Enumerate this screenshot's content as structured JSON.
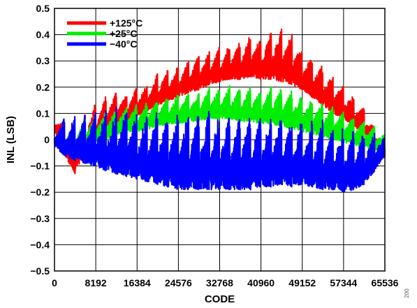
{
  "chart_data": {
    "type": "line",
    "title": "",
    "xlabel": "CODE",
    "ylabel": "INL (LSB)",
    "xlim": [
      0,
      65536
    ],
    "ylim": [
      -0.5,
      0.5
    ],
    "x_ticks": [
      0,
      8192,
      16384,
      24576,
      32768,
      40960,
      49152,
      57344,
      65536
    ],
    "x_tick_labels": [
      "0",
      "8192",
      "16384",
      "24576",
      "32768",
      "40960",
      "49152",
      "57344",
      "65536"
    ],
    "y_ticks": [
      -0.5,
      -0.4,
      -0.3,
      -0.2,
      -0.1,
      0,
      0.1,
      0.2,
      0.3,
      0.4,
      0.5
    ],
    "y_tick_labels": [
      "−0.5",
      "−0.4",
      "−0.3",
      "−0.2",
      "−0.1",
      "0",
      "0.1",
      "0.2",
      "0.3",
      "0.4",
      "0.5"
    ],
    "grid": true,
    "legend_position": "top-left",
    "figure_id": "200",
    "series": [
      {
        "name": "+125°C",
        "color": "#ff0000",
        "x": [
          0,
          2048,
          4096,
          6144,
          8192,
          10240,
          12288,
          14336,
          16384,
          18432,
          20480,
          22528,
          24576,
          26624,
          28672,
          30720,
          32768,
          34816,
          36864,
          38912,
          40960,
          43008,
          45056,
          47104,
          49152,
          51200,
          53248,
          55296,
          57344,
          59392,
          61440,
          63488,
          65536
        ],
        "high": [
          0.13,
          0.07,
          0.06,
          0.11,
          0.15,
          0.17,
          0.19,
          0.17,
          0.21,
          0.22,
          0.26,
          0.27,
          0.29,
          0.31,
          0.33,
          0.34,
          0.36,
          0.38,
          0.39,
          0.41,
          0.4,
          0.42,
          0.44,
          0.41,
          0.36,
          0.32,
          0.29,
          0.25,
          0.21,
          0.17,
          0.12,
          0.05,
          -0.02
        ],
        "low": [
          0.02,
          -0.06,
          -0.13,
          -0.05,
          -0.01,
          0.03,
          0.06,
          0.07,
          0.09,
          0.11,
          0.13,
          0.15,
          0.16,
          0.18,
          0.19,
          0.21,
          0.22,
          0.23,
          0.23,
          0.24,
          0.23,
          0.23,
          0.22,
          0.21,
          0.19,
          0.16,
          0.13,
          0.1,
          0.08,
          0.05,
          0.02,
          -0.02,
          -0.07
        ]
      },
      {
        "name": "+25°C",
        "color": "#00ee00",
        "x": [
          0,
          2048,
          4096,
          6144,
          8192,
          10240,
          12288,
          14336,
          16384,
          18432,
          20480,
          22528,
          24576,
          26624,
          28672,
          30720,
          32768,
          34816,
          36864,
          38912,
          40960,
          43008,
          45056,
          47104,
          49152,
          51200,
          53248,
          55296,
          57344,
          59392,
          61440,
          63488,
          65536
        ],
        "high": [
          0.05,
          0.06,
          0.07,
          0.09,
          0.1,
          0.11,
          0.12,
          0.13,
          0.14,
          0.15,
          0.16,
          0.17,
          0.18,
          0.18,
          0.19,
          0.2,
          0.2,
          0.21,
          0.2,
          0.21,
          0.2,
          0.21,
          0.2,
          0.19,
          0.18,
          0.17,
          0.15,
          0.13,
          0.11,
          0.09,
          0.07,
          0.05,
          0.02
        ],
        "low": [
          -0.02,
          -0.04,
          -0.05,
          -0.03,
          -0.01,
          0.0,
          0.02,
          0.03,
          0.03,
          0.04,
          0.05,
          0.06,
          0.06,
          0.07,
          0.07,
          0.08,
          0.08,
          0.08,
          0.07,
          0.07,
          0.06,
          0.06,
          0.05,
          0.04,
          0.03,
          0.02,
          0.01,
          0.0,
          -0.01,
          -0.02,
          -0.03,
          -0.04,
          -0.05
        ]
      },
      {
        "name": "−40°C",
        "color": "#0000ff",
        "x": [
          0,
          2048,
          4096,
          6144,
          8192,
          10240,
          12288,
          14336,
          16384,
          18432,
          20480,
          22528,
          24576,
          26624,
          28672,
          30720,
          32768,
          34816,
          36864,
          38912,
          40960,
          43008,
          45056,
          47104,
          49152,
          51200,
          53248,
          55296,
          57344,
          59392,
          61440,
          63488,
          65536
        ],
        "high": [
          0.08,
          0.09,
          0.1,
          0.11,
          0.12,
          0.12,
          0.13,
          0.13,
          0.12,
          0.13,
          0.13,
          0.12,
          0.13,
          0.13,
          0.12,
          0.12,
          0.12,
          0.11,
          0.12,
          0.11,
          0.11,
          0.11,
          0.1,
          0.1,
          0.09,
          0.09,
          0.08,
          0.07,
          0.06,
          0.05,
          0.04,
          0.03,
          0.01
        ],
        "low": [
          -0.03,
          -0.06,
          -0.08,
          -0.09,
          -0.1,
          -0.12,
          -0.13,
          -0.14,
          -0.15,
          -0.16,
          -0.17,
          -0.18,
          -0.19,
          -0.19,
          -0.19,
          -0.19,
          -0.19,
          -0.19,
          -0.19,
          -0.19,
          -0.18,
          -0.18,
          -0.17,
          -0.18,
          -0.17,
          -0.18,
          -0.19,
          -0.19,
          -0.2,
          -0.19,
          -0.17,
          -0.12,
          -0.06
        ]
      }
    ]
  }
}
